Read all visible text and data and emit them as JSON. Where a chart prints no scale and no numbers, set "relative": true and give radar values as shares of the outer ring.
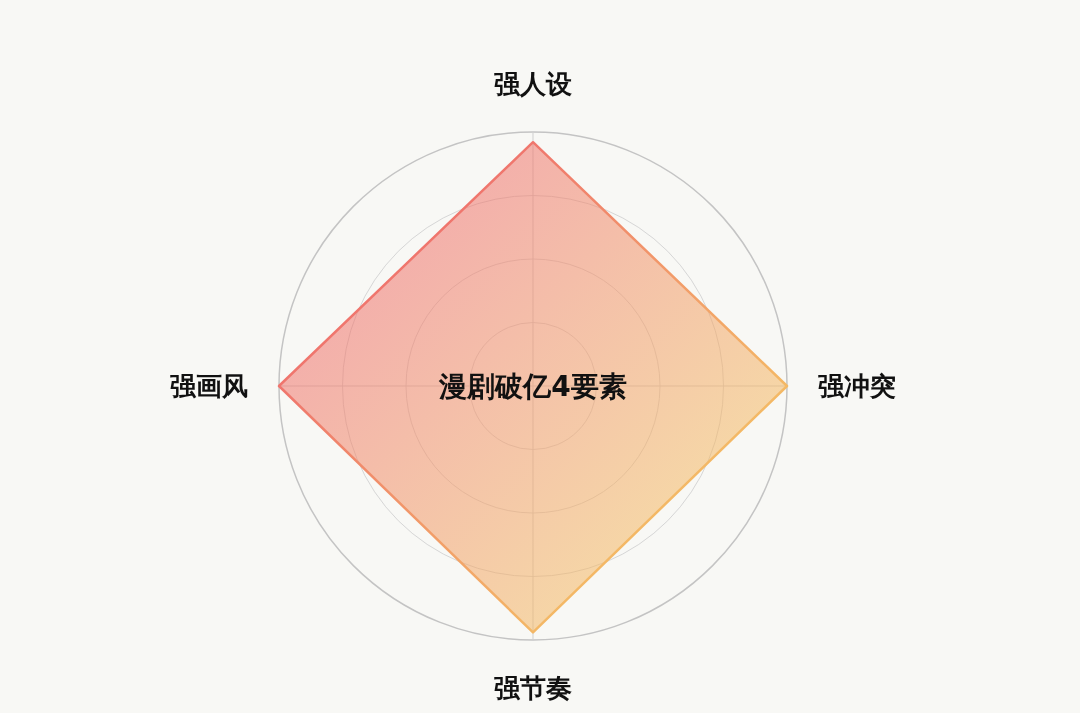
{
  "chart_data": {
    "type": "radar",
    "title": "漫剧破亿4要素",
    "categories": [
      "强人设",
      "强冲突",
      "强节奏",
      "强画风"
    ],
    "relative": true,
    "grid": true,
    "series": [
      {
        "colors": [
          "#ee6676",
          "#f5cf63",
          "#f7d86a",
          "#ee5f70"
        ],
        "values": [
          0.96,
          1,
          0.97,
          1
        ]
      }
    ]
  }
}
